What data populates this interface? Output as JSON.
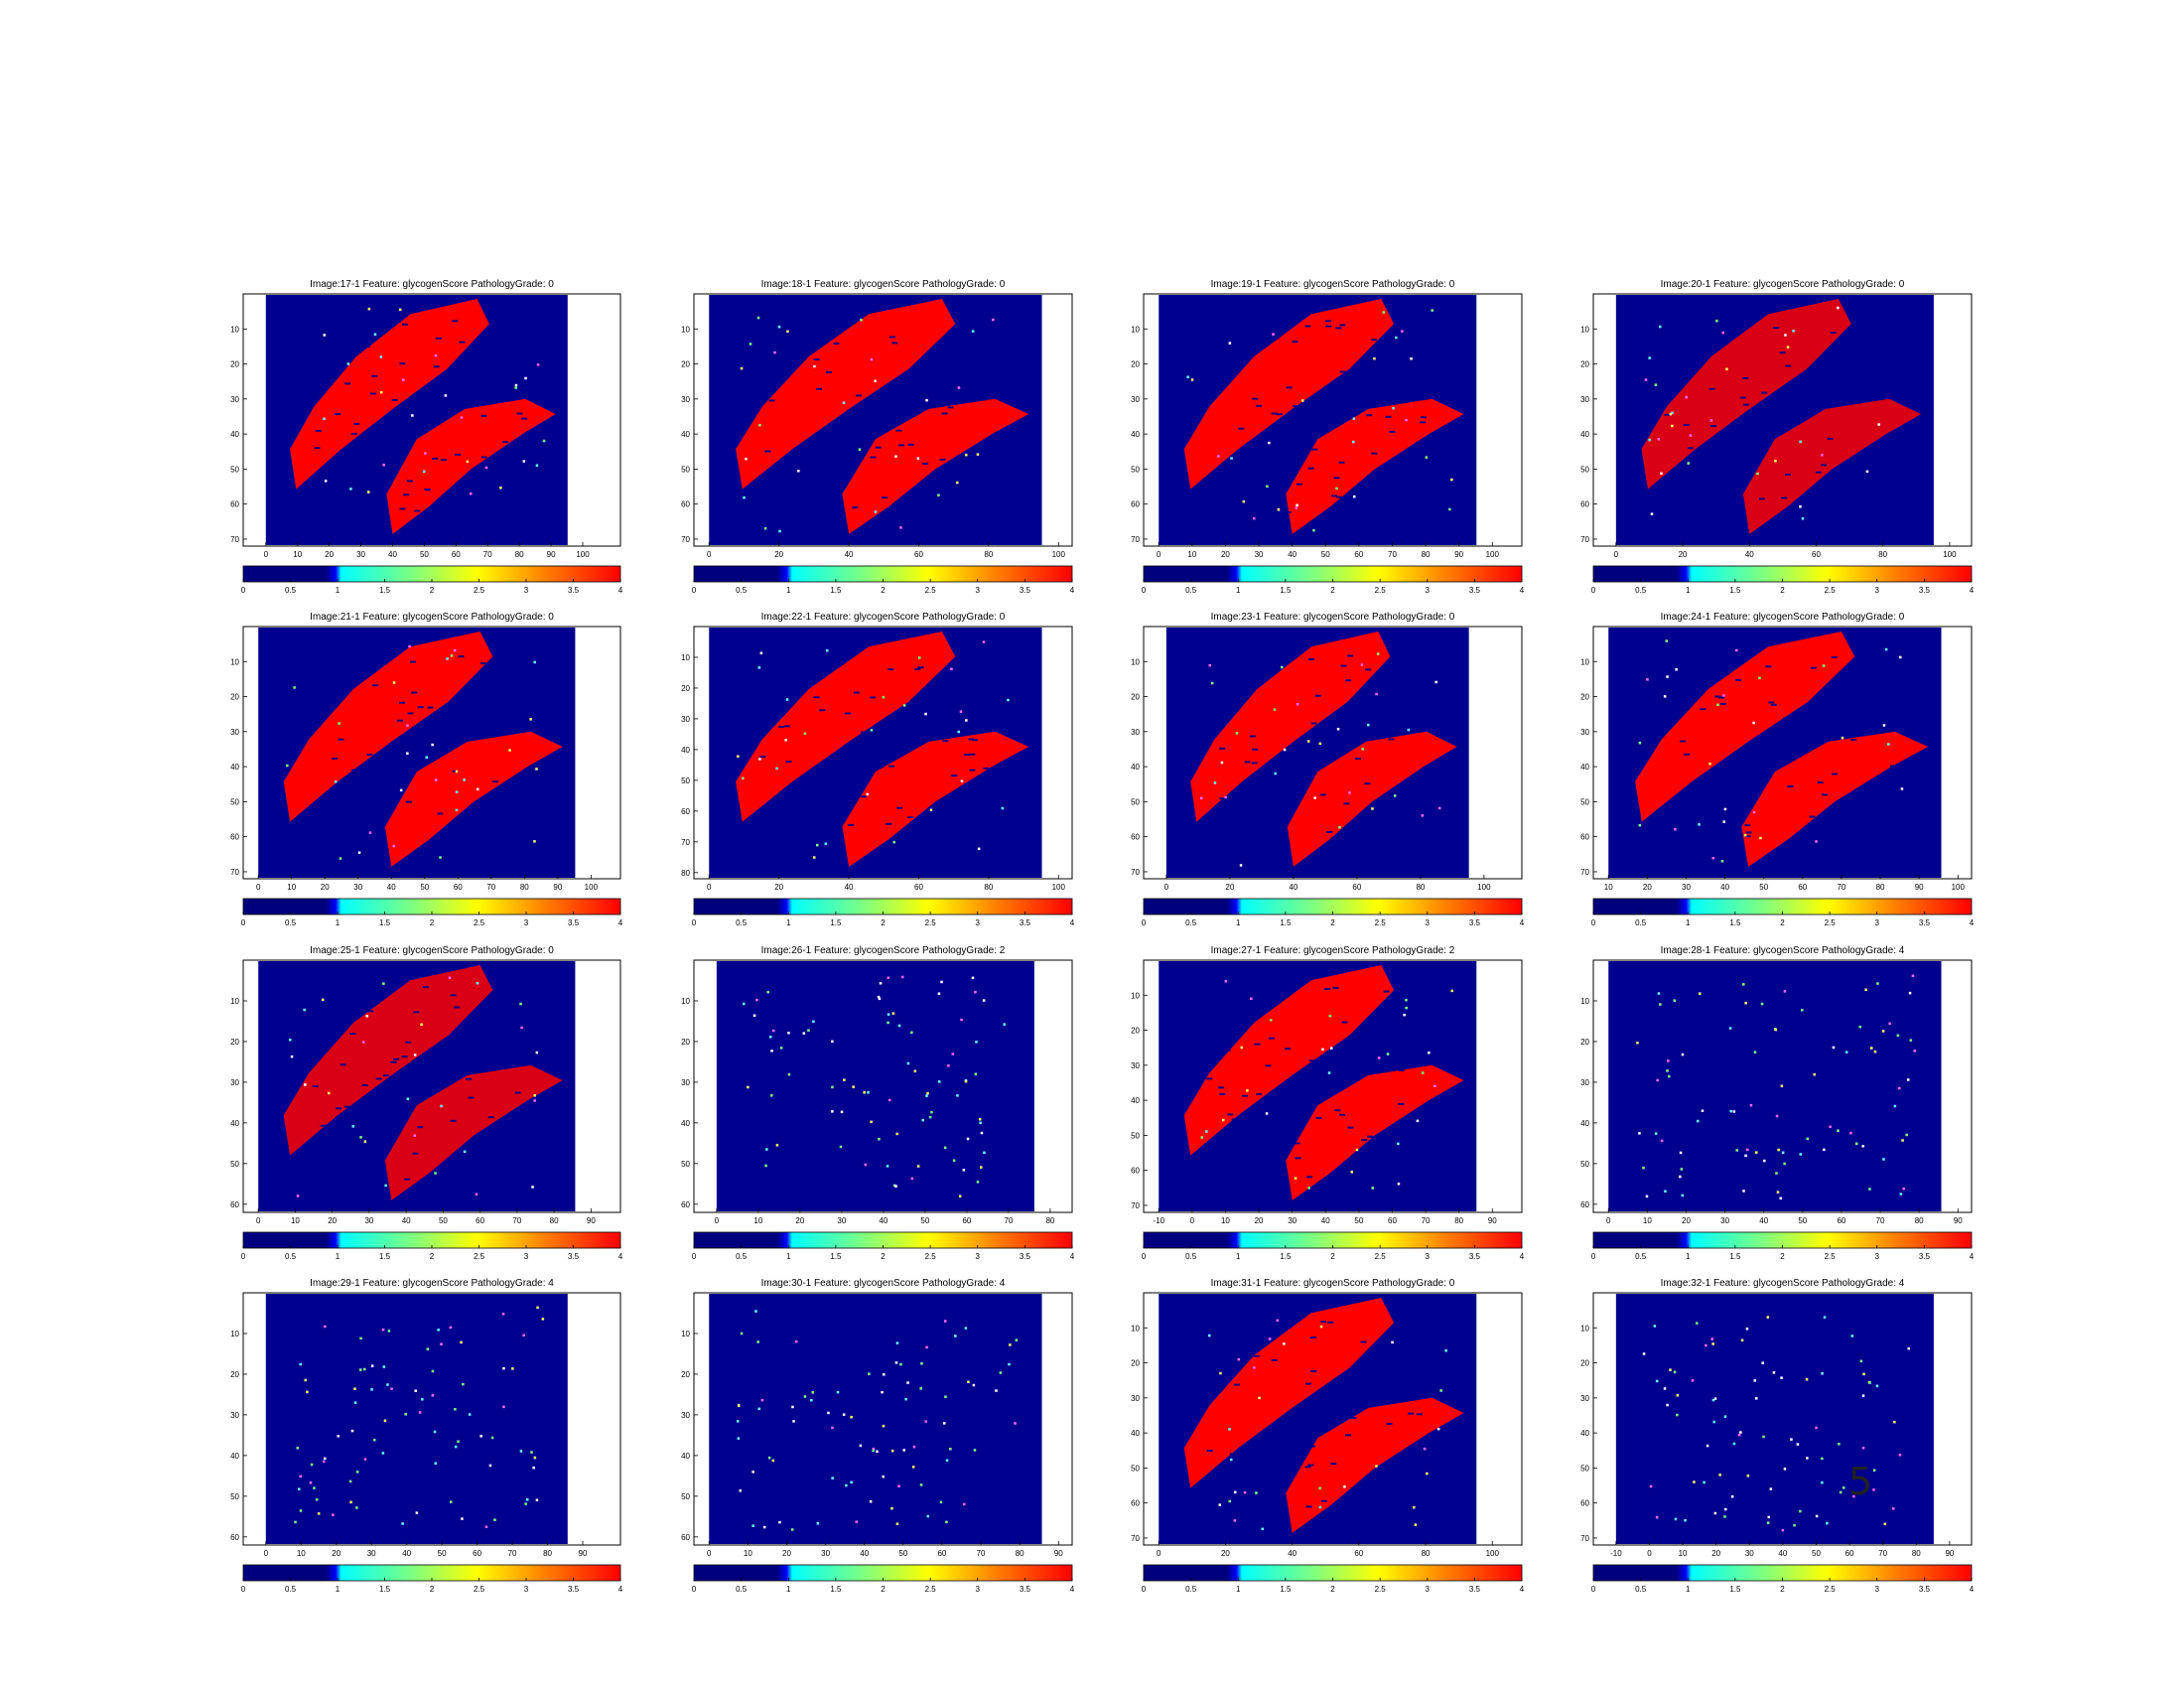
{
  "colors": {
    "background": "#00008F",
    "tissue": "#FF0000",
    "colormap": [
      "#00007F",
      "#0000FF",
      "#00FFFF",
      "#7FFF7F",
      "#FFFF00",
      "#FF7F00",
      "#FF0000"
    ]
  },
  "page_number": "5",
  "colorbar_ticks": [
    "0",
    "0.5",
    "1",
    "1.5",
    "2",
    "2.5",
    "3",
    "3.5",
    "4"
  ],
  "chart_data": [
    {
      "type": "heatmap",
      "title": "Image:17-1     Feature: glycogenScore  PathologyGrade: 0",
      "density": "dense",
      "x_ticks": [
        "0",
        "10",
        "20",
        "30",
        "40",
        "50",
        "60",
        "70",
        "80",
        "90",
        "100"
      ],
      "y_ticks": [
        "10",
        "20",
        "30",
        "40",
        "50",
        "60",
        "70"
      ]
    },
    {
      "type": "heatmap",
      "title": "Image:18-1     Feature: glycogenScore  PathologyGrade: 0",
      "density": "dense",
      "x_ticks": [
        "0",
        "20",
        "40",
        "60",
        "80",
        "100"
      ],
      "y_ticks": [
        "10",
        "20",
        "30",
        "40",
        "50",
        "60",
        "70"
      ]
    },
    {
      "type": "heatmap",
      "title": "Image:19-1     Feature: glycogenScore  PathologyGrade: 0",
      "density": "dense",
      "x_ticks": [
        "0",
        "10",
        "20",
        "30",
        "40",
        "50",
        "60",
        "70",
        "80",
        "90",
        "100"
      ],
      "y_ticks": [
        "10",
        "20",
        "30",
        "40",
        "50",
        "60",
        "70"
      ]
    },
    {
      "type": "heatmap",
      "title": "Image:20-1     Feature: glycogenScore  PathologyGrade: 0",
      "density": "mixed",
      "x_ticks": [
        "0",
        "20",
        "40",
        "60",
        "80",
        "100"
      ],
      "y_ticks": [
        "10",
        "20",
        "30",
        "40",
        "50",
        "60",
        "70"
      ]
    },
    {
      "type": "heatmap",
      "title": "Image:21-1     Feature: glycogenScore  PathologyGrade: 0",
      "density": "dense",
      "x_ticks": [
        "0",
        "10",
        "20",
        "30",
        "40",
        "50",
        "60",
        "70",
        "80",
        "90",
        "100"
      ],
      "y_ticks": [
        "10",
        "20",
        "30",
        "40",
        "50",
        "60",
        "70"
      ]
    },
    {
      "type": "heatmap",
      "title": "Image:22-1     Feature: glycogenScore  PathologyGrade: 0",
      "density": "dense",
      "x_ticks": [
        "0",
        "20",
        "40",
        "60",
        "80",
        "100"
      ],
      "y_ticks": [
        "10",
        "20",
        "30",
        "40",
        "50",
        "60",
        "70",
        "80"
      ]
    },
    {
      "type": "heatmap",
      "title": "Image:23-1     Feature: glycogenScore  PathologyGrade: 0",
      "density": "dense",
      "x_ticks": [
        "0",
        "20",
        "40",
        "60",
        "80",
        "100"
      ],
      "y_ticks": [
        "10",
        "20",
        "30",
        "40",
        "50",
        "60",
        "70"
      ]
    },
    {
      "type": "heatmap",
      "title": "Image:24-1     Feature: glycogenScore  PathologyGrade: 0",
      "density": "dense",
      "x_ticks": [
        "10",
        "20",
        "30",
        "40",
        "50",
        "60",
        "70",
        "80",
        "90",
        "100"
      ],
      "y_ticks": [
        "10",
        "20",
        "30",
        "40",
        "50",
        "60",
        "70"
      ]
    },
    {
      "type": "heatmap",
      "title": "Image:25-1     Feature: glycogenScore  PathologyGrade: 0",
      "density": "mixed",
      "x_ticks": [
        "0",
        "10",
        "20",
        "30",
        "40",
        "50",
        "60",
        "70",
        "80",
        "90"
      ],
      "y_ticks": [
        "10",
        "20",
        "30",
        "40",
        "50",
        "60"
      ]
    },
    {
      "type": "heatmap",
      "title": "Image:26-1     Feature: glycogenScore  PathologyGrade: 2",
      "density": "sparse",
      "x_ticks": [
        "0",
        "10",
        "20",
        "30",
        "40",
        "50",
        "60",
        "70",
        "80"
      ],
      "y_ticks": [
        "10",
        "20",
        "30",
        "40",
        "50",
        "60"
      ]
    },
    {
      "type": "heatmap",
      "title": "Image:27-1     Feature: glycogenScore  PathologyGrade: 2",
      "density": "dense",
      "x_ticks": [
        "-10",
        "0",
        "10",
        "20",
        "30",
        "40",
        "50",
        "60",
        "70",
        "80",
        "90"
      ],
      "y_ticks": [
        "10",
        "20",
        "30",
        "40",
        "50",
        "60",
        "70"
      ]
    },
    {
      "type": "heatmap",
      "title": "Image:28-1     Feature: glycogenScore  PathologyGrade: 4",
      "density": "sparse",
      "x_ticks": [
        "0",
        "10",
        "20",
        "30",
        "40",
        "50",
        "60",
        "70",
        "80",
        "90"
      ],
      "y_ticks": [
        "10",
        "20",
        "30",
        "40",
        "50",
        "60"
      ]
    },
    {
      "type": "heatmap",
      "title": "Image:29-1     Feature: glycogenScore  PathologyGrade: 4",
      "density": "sparse",
      "x_ticks": [
        "0",
        "10",
        "20",
        "30",
        "40",
        "50",
        "60",
        "70",
        "80",
        "90"
      ],
      "y_ticks": [
        "10",
        "20",
        "30",
        "40",
        "50",
        "60"
      ]
    },
    {
      "type": "heatmap",
      "title": "Image:30-1     Feature: glycogenScore  PathologyGrade: 4",
      "density": "sparse",
      "x_ticks": [
        "0",
        "10",
        "20",
        "30",
        "40",
        "50",
        "60",
        "70",
        "80",
        "90"
      ],
      "y_ticks": [
        "10",
        "20",
        "30",
        "40",
        "50",
        "60"
      ]
    },
    {
      "type": "heatmap",
      "title": "Image:31-1     Feature: glycogenScore  PathologyGrade: 0",
      "density": "dense",
      "x_ticks": [
        "0",
        "20",
        "40",
        "60",
        "80",
        "100"
      ],
      "y_ticks": [
        "10",
        "20",
        "30",
        "40",
        "50",
        "60",
        "70"
      ]
    },
    {
      "type": "heatmap",
      "title": "Image:32-1     Feature: glycogenScore  PathologyGrade: 4",
      "density": "sparse",
      "x_ticks": [
        "-10",
        "0",
        "10",
        "20",
        "30",
        "40",
        "50",
        "60",
        "70",
        "80",
        "90"
      ],
      "y_ticks": [
        "10",
        "20",
        "30",
        "40",
        "50",
        "60",
        "70"
      ]
    }
  ]
}
